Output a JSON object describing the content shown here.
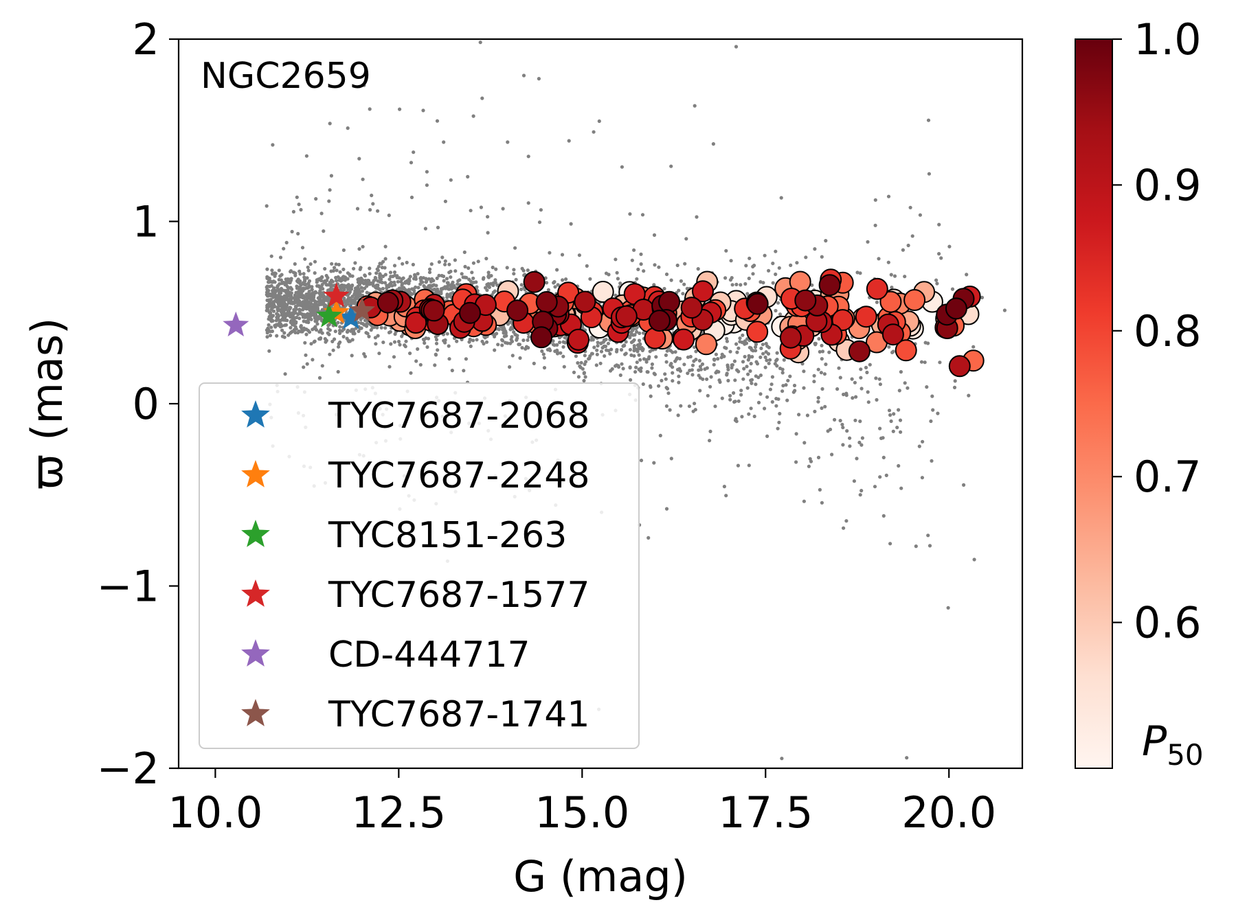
{
  "chart_data": {
    "type": "scatter",
    "cluster_label": "NGC2659",
    "xlabel": "G (mag)",
    "ylabel": "ϖ (mas)",
    "xlim": [
      9.5,
      21.0
    ],
    "ylim": [
      -2,
      2
    ],
    "x_ticks": [
      10.0,
      12.5,
      15.0,
      17.5,
      20.0
    ],
    "x_tick_labels": [
      "10.0",
      "12.5",
      "15.0",
      "17.5",
      "20.0"
    ],
    "y_ticks": [
      -2,
      -1,
      0,
      1,
      2
    ],
    "y_tick_labels": [
      "−2",
      "−1",
      "0",
      "1",
      "2"
    ],
    "colorbar": {
      "label_main": "P",
      "label_sub": "50",
      "range": [
        0.5,
        1.0
      ],
      "ticks": [
        0.6,
        0.7,
        0.8,
        0.9,
        1.0
      ],
      "tick_labels": [
        "0.6",
        "0.7",
        "0.8",
        "0.9",
        "1.0"
      ],
      "colormap": "Reds",
      "colormap_stops": [
        "#fff5f0",
        "#fee0d2",
        "#fcbba1",
        "#fc9272",
        "#fb6a4a",
        "#ef3b2c",
        "#cb181d",
        "#a50f15",
        "#67000d"
      ]
    },
    "field_stars": {
      "color": "#808080",
      "count_approx": 4000,
      "description_ranges": {
        "g_range": [
          10.5,
          21.0
        ],
        "parallax_range": [
          -2,
          2
        ]
      }
    },
    "members": {
      "g_range": [
        12.0,
        20.3
      ],
      "parallax_mean": 0.49,
      "parallax_scatter": 0.05,
      "edge_color": "#000000"
    },
    "highlighted_stars": [
      {
        "name": "TYC7687-2068",
        "g": 11.85,
        "parallax": 0.47,
        "color": "#1f77b4"
      },
      {
        "name": "TYC7687-2248",
        "g": 11.65,
        "parallax": 0.5,
        "color": "#ff7f0e"
      },
      {
        "name": "TYC8151-263",
        "g": 11.55,
        "parallax": 0.48,
        "color": "#2ca02c"
      },
      {
        "name": "TYC7687-1577",
        "g": 11.65,
        "parallax": 0.59,
        "color": "#d62728"
      },
      {
        "name": "CD-444717",
        "g": 10.28,
        "parallax": 0.43,
        "color": "#9467bd"
      },
      {
        "name": "TYC7687-1741",
        "g": 12.0,
        "parallax": 0.51,
        "color": "#8c564b"
      }
    ],
    "legend_position": "lower-left"
  }
}
